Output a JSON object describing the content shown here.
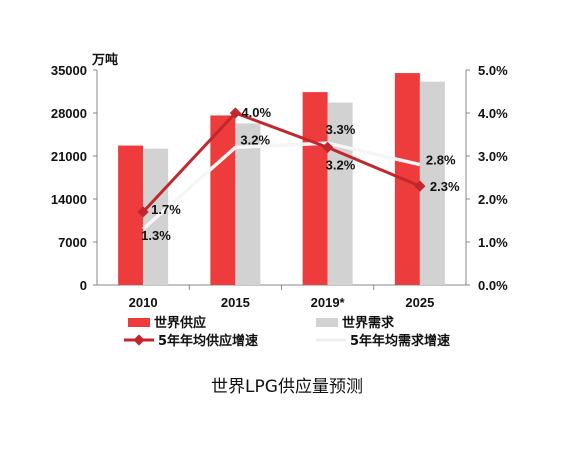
{
  "caption": "世界LPG供应量预测",
  "chart_data": {
    "type": "bar",
    "categories": [
      "2010",
      "2015",
      "2019*",
      "2025"
    ],
    "y_left": {
      "unit": "万吨",
      "ticks": [
        "0",
        "7000",
        "14000",
        "21000",
        "28000",
        "35000"
      ],
      "ylim": [
        0,
        35000
      ]
    },
    "y_right": {
      "ticks": [
        "0.0%",
        "1.0%",
        "2.0%",
        "3.0%",
        "4.0%",
        "5.0%"
      ],
      "ylim": [
        0,
        5.0
      ]
    },
    "series": [
      {
        "name": "世界供应",
        "kind": "bar",
        "axis": "left",
        "color": "#ee3b3b",
        "values": [
          22700,
          27600,
          31400,
          34500
        ]
      },
      {
        "name": "世界需求",
        "kind": "bar",
        "axis": "left",
        "color": "#d2d2d2",
        "values": [
          22200,
          26300,
          29700,
          33100
        ]
      },
      {
        "name": "5年年均供应增速",
        "kind": "line",
        "axis": "right",
        "color": "#c0282d",
        "values": [
          1.7,
          4.0,
          3.2,
          2.3
        ],
        "labels": [
          "1.7%",
          "4.0%",
          "3.2%",
          "2.3%"
        ]
      },
      {
        "name": "5年年均需求增速",
        "kind": "line",
        "axis": "right",
        "color": "#f6f6f6",
        "values": [
          1.3,
          3.2,
          3.3,
          2.8
        ],
        "labels": [
          "1.3%",
          "3.2%",
          "3.3%",
          "2.8%"
        ]
      }
    ],
    "legend": "bottom",
    "grid": false
  }
}
